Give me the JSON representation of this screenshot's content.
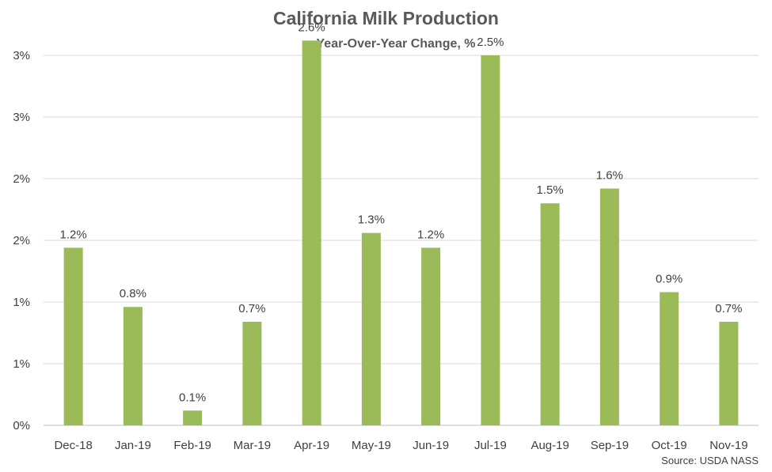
{
  "chart_data": {
    "type": "bar",
    "title": "California Milk Production",
    "subtitle": "Year-Over-Year Change, %",
    "source": "Source: USDA NASS",
    "categories": [
      "Dec-18",
      "Jan-19",
      "Feb-19",
      "Mar-19",
      "Apr-19",
      "May-19",
      "Jun-19",
      "Jul-19",
      "Aug-19",
      "Sep-19",
      "Oct-19",
      "Nov-19"
    ],
    "values": [
      1.2,
      0.8,
      0.1,
      0.7,
      2.6,
      1.3,
      1.2,
      2.5,
      1.5,
      1.6,
      0.9,
      0.7
    ],
    "data_labels": [
      "1.2%",
      "0.8%",
      "0.1%",
      "0.7%",
      "2.6%",
      "1.3%",
      "1.2%",
      "2.5%",
      "1.5%",
      "1.6%",
      "0.9%",
      "0.7%"
    ],
    "ytick_labels": [
      "0%",
      "1%",
      "1%",
      "2%",
      "2%",
      "3%",
      "3%"
    ],
    "ylim": [
      0,
      3
    ],
    "xlabel": "",
    "ylabel": "",
    "grid": true,
    "bar_color": "#9BBB59",
    "grid_color": "#D9D9D9"
  }
}
